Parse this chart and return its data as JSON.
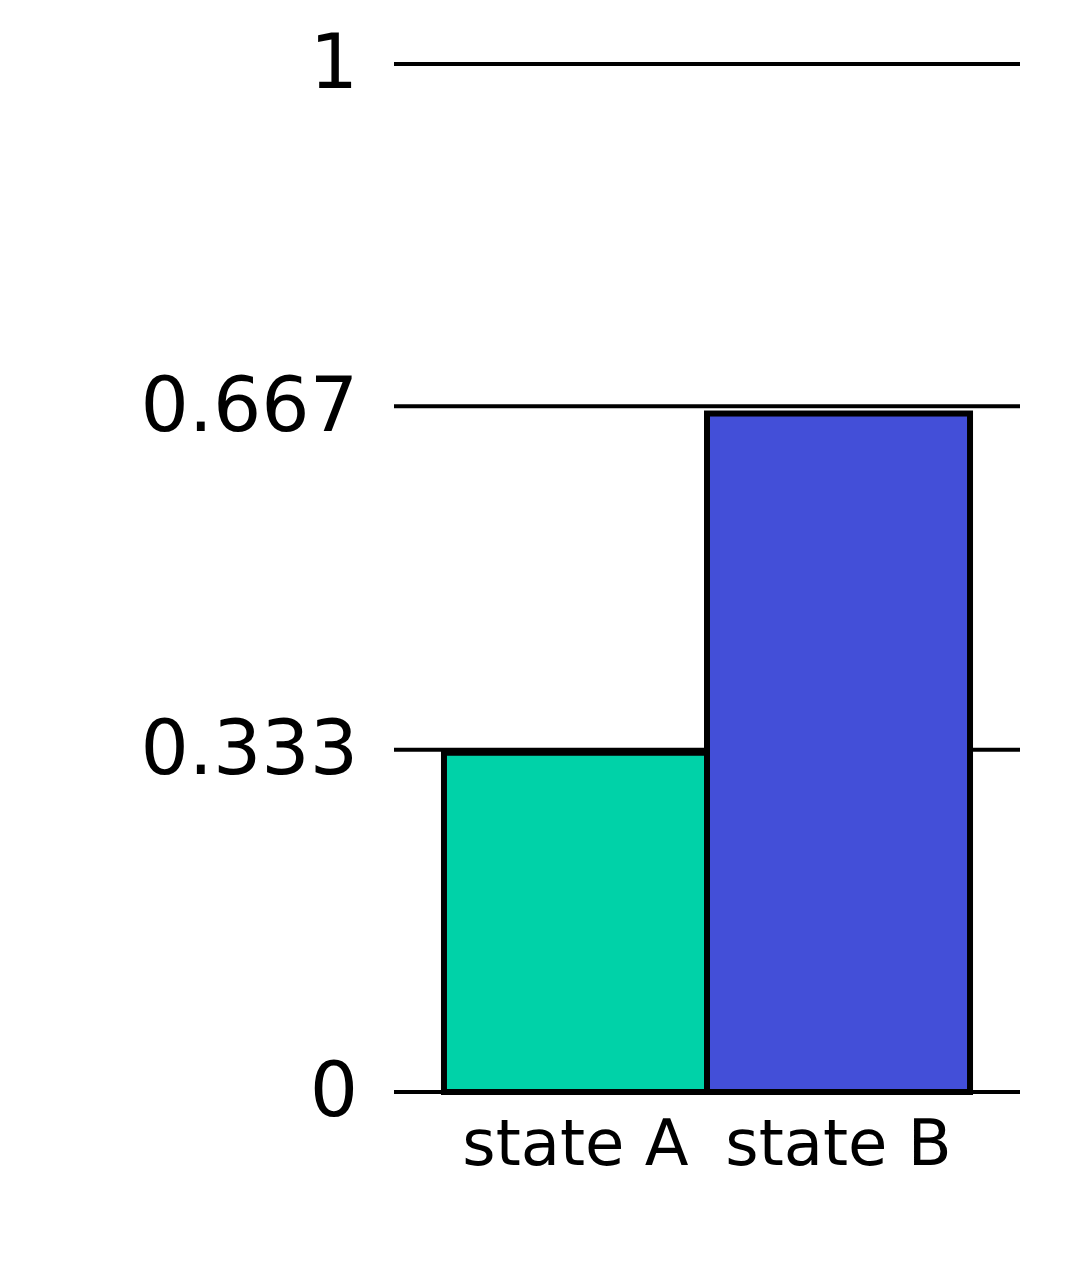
{
  "chart_data": {
    "type": "bar",
    "categories": [
      "state A",
      "state B"
    ],
    "values": [
      0.33,
      0.66
    ],
    "colors": [
      "#00d2a8",
      "#434fd8"
    ],
    "ylim": [
      0,
      1
    ],
    "yticks": [
      0,
      0.333,
      0.667,
      1
    ],
    "grid": "y"
  }
}
